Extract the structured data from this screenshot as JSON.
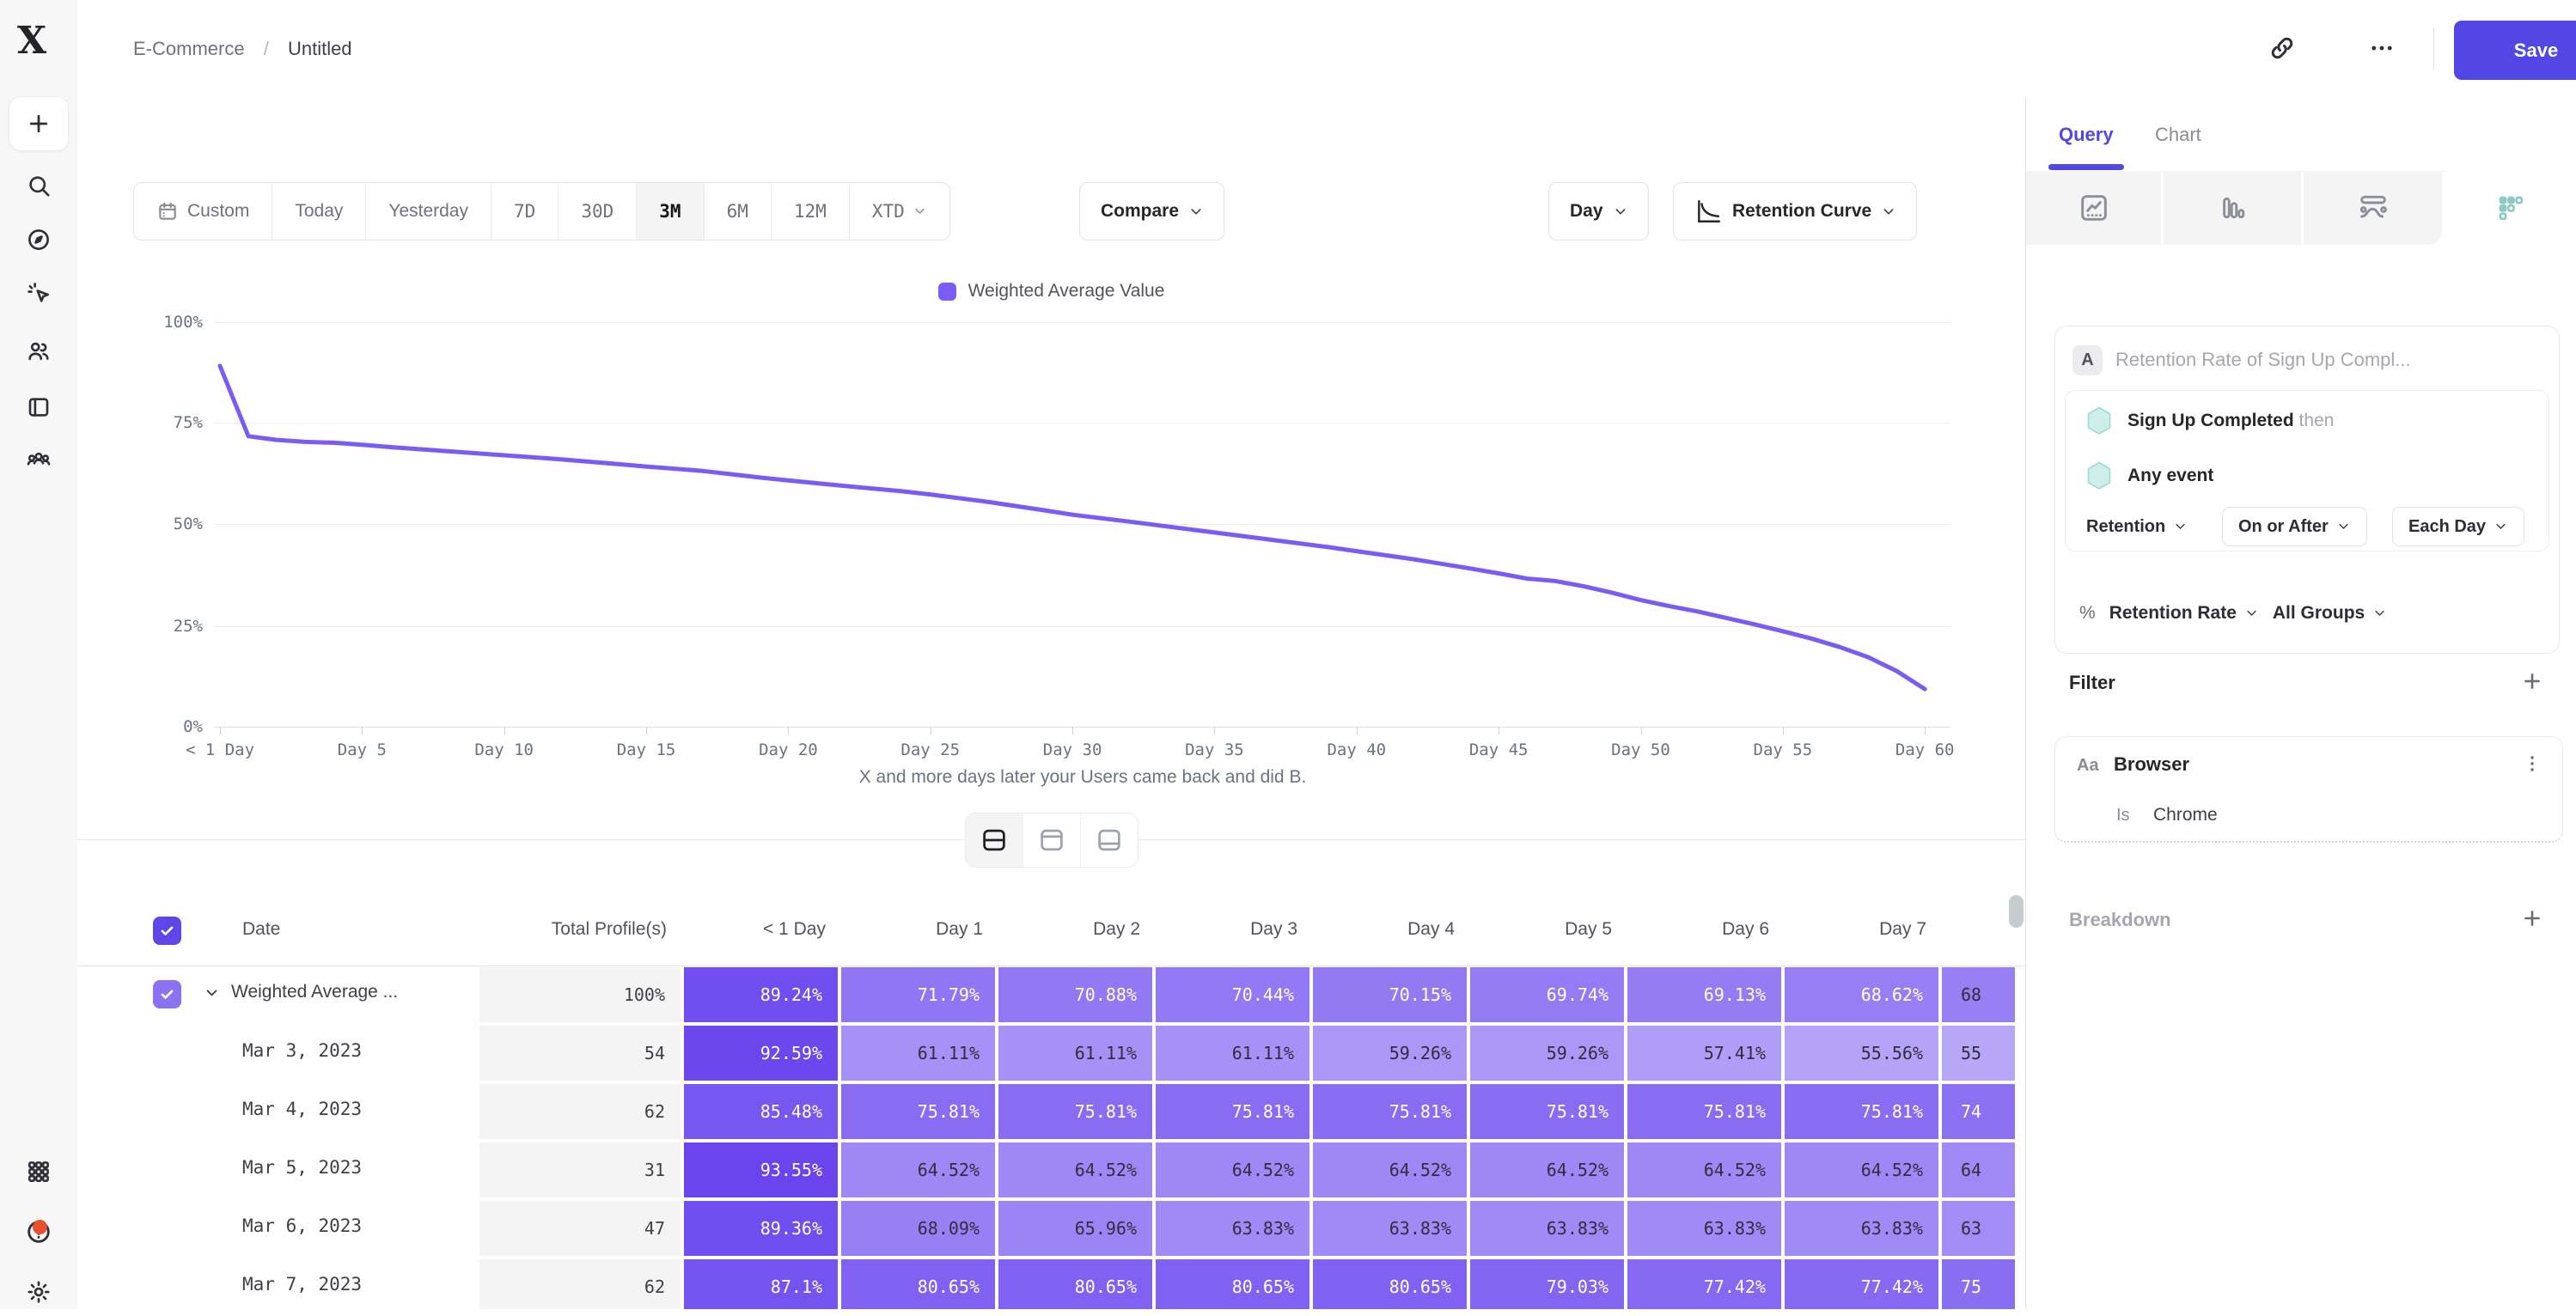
{
  "colors": {
    "accent": "#5246e5",
    "line": "#7a5cf5",
    "legend_swatch": "#7c5cf8",
    "cell_light_rgb": [
      186,
      172,
      248
    ],
    "cell_dark_rgb": [
      104,
      66,
      238
    ],
    "teal_fill": "#cdeee9",
    "teal_stroke": "#9ddbd2"
  },
  "breadcrumb": {
    "parent": "E-Commerce",
    "separator": "/",
    "current": "Untitled"
  },
  "header": {
    "save_label": "Save"
  },
  "sidebar_icons": [
    "plus",
    "search",
    "compass",
    "spark-cursor",
    "users",
    "notebook",
    "people-group",
    "grid-dots",
    "help",
    "gear"
  ],
  "toolbar": {
    "date_ranges": [
      {
        "label": "Custom",
        "icon": "calendar",
        "mono": false,
        "selected": false
      },
      {
        "label": "Today",
        "mono": false,
        "selected": false
      },
      {
        "label": "Yesterday",
        "mono": false,
        "selected": false
      },
      {
        "label": "7D",
        "mono": true,
        "selected": false
      },
      {
        "label": "30D",
        "mono": true,
        "selected": false
      },
      {
        "label": "3M",
        "mono": true,
        "selected": true
      },
      {
        "label": "6M",
        "mono": true,
        "selected": false
      },
      {
        "label": "12M",
        "mono": true,
        "selected": false
      },
      {
        "label": "XTD",
        "mono": true,
        "selected": false,
        "chevron": true
      }
    ],
    "compare_label": "Compare",
    "granularity_label": "Day",
    "chart_type_label": "Retention Curve"
  },
  "chart_data": {
    "type": "line",
    "legend": "Weighted Average Value",
    "xlabel": "X and more days later your Users came back and did B.",
    "y_ticks": [
      "100%",
      "75%",
      "50%",
      "25%",
      "0%"
    ],
    "x_ticks": [
      "< 1 Day",
      "Day 5",
      "Day 10",
      "Day 15",
      "Day 20",
      "Day 25",
      "Day 30",
      "Day 35",
      "Day 40",
      "Day 45",
      "Day 50",
      "Day 55",
      "Day 60"
    ],
    "x_tick_days": [
      0,
      5,
      10,
      15,
      20,
      25,
      30,
      35,
      40,
      45,
      50,
      55,
      60
    ],
    "ylim": [
      0,
      100
    ],
    "series": [
      {
        "name": "Weighted Average Value",
        "points": [
          [
            0,
            89.2
          ],
          [
            1,
            71.8
          ],
          [
            2,
            70.9
          ],
          [
            3,
            70.4
          ],
          [
            4,
            70.2
          ],
          [
            5,
            69.7
          ],
          [
            6,
            69.1
          ],
          [
            7,
            68.6
          ],
          [
            8,
            68.1
          ],
          [
            9,
            67.6
          ],
          [
            10,
            67.1
          ],
          [
            12,
            66.1
          ],
          [
            14,
            64.9
          ],
          [
            15,
            64.3
          ],
          [
            17,
            63.2
          ],
          [
            19,
            61.6
          ],
          [
            20,
            60.9
          ],
          [
            22,
            59.5
          ],
          [
            24,
            58.2
          ],
          [
            25,
            57.4
          ],
          [
            27,
            55.6
          ],
          [
            29,
            53.5
          ],
          [
            30,
            52.4
          ],
          [
            32,
            50.7
          ],
          [
            34,
            48.9
          ],
          [
            35,
            48.0
          ],
          [
            37,
            46.2
          ],
          [
            39,
            44.4
          ],
          [
            40,
            43.4
          ],
          [
            42,
            41.4
          ],
          [
            44,
            39.1
          ],
          [
            45,
            37.9
          ],
          [
            46,
            36.6
          ],
          [
            47,
            36.0
          ],
          [
            48,
            34.7
          ],
          [
            49,
            33.1
          ],
          [
            50,
            31.3
          ],
          [
            51,
            29.8
          ],
          [
            52,
            28.5
          ],
          [
            53,
            26.9
          ],
          [
            54,
            25.3
          ],
          [
            55,
            23.6
          ],
          [
            56,
            21.8
          ],
          [
            57,
            19.7
          ],
          [
            58,
            17.2
          ],
          [
            59,
            13.8
          ],
          [
            60,
            9.3
          ]
        ]
      }
    ]
  },
  "layout_toggles": [
    {
      "name": "split-horizontal",
      "selected": true
    },
    {
      "name": "panel-top",
      "selected": false
    },
    {
      "name": "panel-bottom",
      "selected": false
    }
  ],
  "table": {
    "headers": [
      "Date",
      "Total Profile(s)",
      "< 1 Day",
      "Day 1",
      "Day 2",
      "Day 3",
      "Day 4",
      "Day 5",
      "Day 6",
      "Day 7"
    ],
    "rows": [
      {
        "label": "Weighted Average ...",
        "expandable": true,
        "checked": true,
        "total": "100%",
        "cells": [
          "89.24%",
          "71.79%",
          "70.88%",
          "70.44%",
          "70.15%",
          "69.74%",
          "69.13%",
          "68.62%"
        ],
        "partial": "68"
      },
      {
        "label": "Mar 3, 2023",
        "total": "54",
        "cells": [
          "92.59%",
          "61.11%",
          "61.11%",
          "61.11%",
          "59.26%",
          "59.26%",
          "57.41%",
          "55.56%"
        ],
        "partial": "55"
      },
      {
        "label": "Mar 4, 2023",
        "total": "62",
        "cells": [
          "85.48%",
          "75.81%",
          "75.81%",
          "75.81%",
          "75.81%",
          "75.81%",
          "75.81%",
          "75.81%"
        ],
        "partial": "74"
      },
      {
        "label": "Mar 5, 2023",
        "total": "31",
        "cells": [
          "93.55%",
          "64.52%",
          "64.52%",
          "64.52%",
          "64.52%",
          "64.52%",
          "64.52%",
          "64.52%"
        ],
        "partial": "64"
      },
      {
        "label": "Mar 6, 2023",
        "total": "47",
        "cells": [
          "89.36%",
          "68.09%",
          "65.96%",
          "63.83%",
          "63.83%",
          "63.83%",
          "63.83%",
          "63.83%"
        ],
        "partial": "63"
      },
      {
        "label": "Mar 7, 2023",
        "total": "62",
        "cells": [
          "87.1%",
          "80.65%",
          "80.65%",
          "80.65%",
          "80.65%",
          "79.03%",
          "77.42%",
          "77.42%"
        ],
        "partial": "75"
      }
    ]
  },
  "panel": {
    "tabs": [
      {
        "label": "Query",
        "active": true
      },
      {
        "label": "Chart",
        "active": false
      }
    ],
    "view_tabs": [
      "insights-chart",
      "bar-chart",
      "flow",
      "dot-grid"
    ],
    "query": {
      "badge": "A",
      "title": "Retention Rate of Sign Up Compl...",
      "steps": [
        {
          "label": "Sign Up Completed",
          "suffix": "then"
        },
        {
          "label": "Any event",
          "suffix": ""
        }
      ],
      "controls": [
        {
          "label": "Retention",
          "bordered": false
        },
        {
          "label": "On or After",
          "bordered": true
        },
        {
          "label": "Each Day",
          "bordered": true
        }
      ],
      "measure": {
        "symbol": "%",
        "label": "Retention Rate",
        "group": "All Groups"
      }
    },
    "filter": {
      "heading": "Filter",
      "property_type": "Aa",
      "property": "Browser",
      "operator": "Is",
      "value": "Chrome"
    },
    "breakdown": {
      "heading": "Breakdown"
    }
  }
}
